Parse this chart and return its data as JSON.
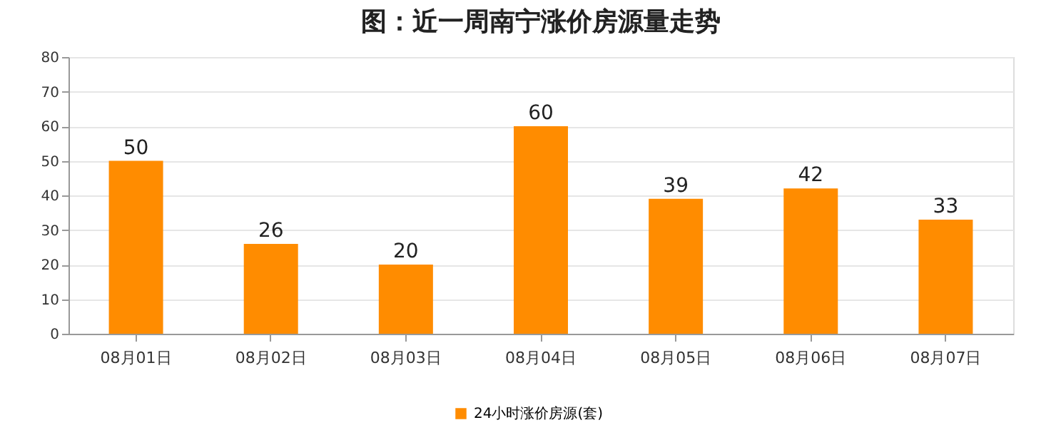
{
  "chart_data": {
    "type": "bar",
    "title": "图：近一周南宁涨价房源量走势",
    "categories": [
      "08月01日",
      "08月02日",
      "08月03日",
      "08月04日",
      "08月05日",
      "08月06日",
      "08月07日"
    ],
    "series": [
      {
        "name": "24小时涨价房源(套)",
        "color": "#ff8c00",
        "values": [
          50,
          26,
          20,
          60,
          39,
          42,
          33
        ]
      }
    ],
    "ylim": [
      0,
      80
    ],
    "yticks": [
      0,
      10,
      20,
      30,
      40,
      50,
      60,
      70,
      80
    ],
    "grid": "y",
    "legend": "bottom",
    "data_labels": true
  }
}
